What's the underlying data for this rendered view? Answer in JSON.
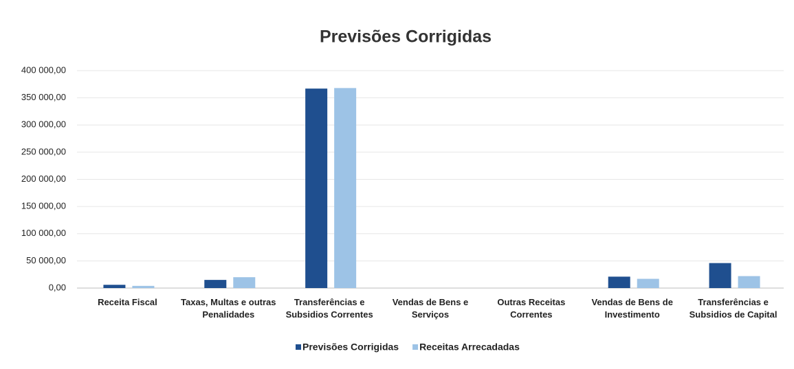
{
  "chart_data": {
    "type": "bar",
    "title": "Previsões Corrigidas",
    "categories": [
      "Receita Fiscal",
      "Taxas, Multas e outras Penalidades",
      "Transferências e Subsidios Correntes",
      "Vendas de Bens e Serviços",
      "Outras Receitas Correntes",
      "Vendas de Bens de Investimento",
      "Transferências e Subsidios de Capital"
    ],
    "series": [
      {
        "name": "Previsões Corrigidas",
        "color": "#1f4f8f",
        "values": [
          6000,
          15000,
          367000,
          0,
          0,
          21000,
          46000
        ]
      },
      {
        "name": "Receitas Arrecadadas",
        "color": "#9dc3e6",
        "values": [
          4000,
          20000,
          368000,
          0,
          0,
          17000,
          22000
        ]
      }
    ],
    "ylim": [
      0,
      400000
    ],
    "yticks": [
      {
        "value": 0,
        "label": "0,00"
      },
      {
        "value": 50000,
        "label": "50 000,00"
      },
      {
        "value": 100000,
        "label": "100 000,00"
      },
      {
        "value": 150000,
        "label": "150 000,00"
      },
      {
        "value": 200000,
        "label": "200 000,00"
      },
      {
        "value": 250000,
        "label": "250 000,00"
      },
      {
        "value": 300000,
        "label": "300 000,00"
      },
      {
        "value": 350000,
        "label": "350 000,00"
      },
      {
        "value": 400000,
        "label": "400 000,00"
      }
    ],
    "grid": true,
    "legend": "bottom"
  }
}
